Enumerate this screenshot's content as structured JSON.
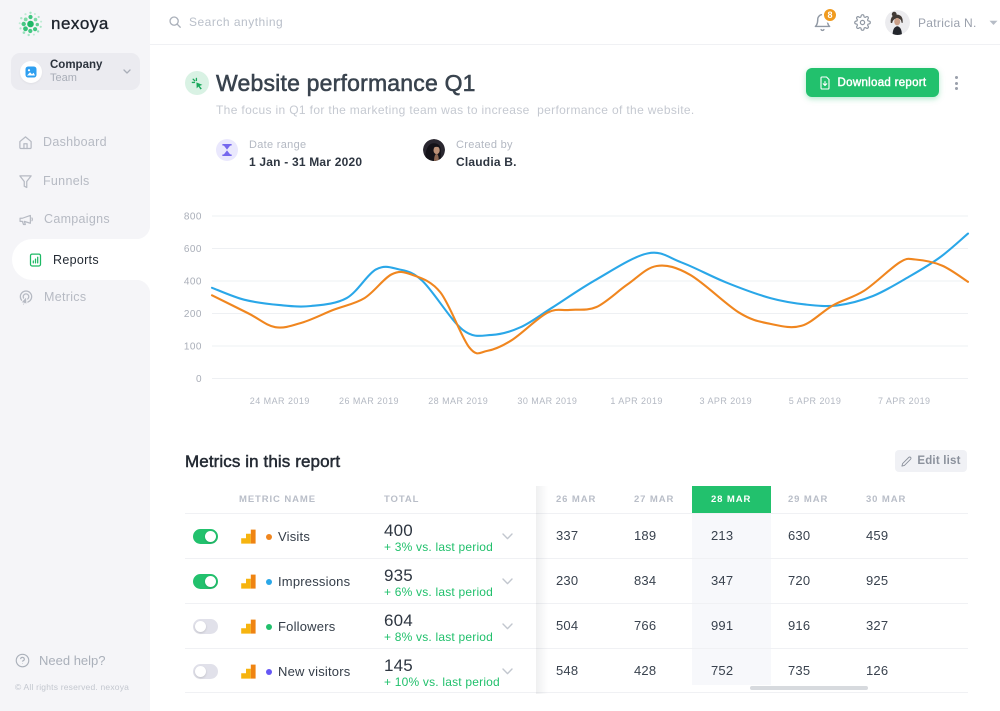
{
  "brand": {
    "name": "nexoya"
  },
  "sidebar": {
    "team_switcher": {
      "title": "Company",
      "subtitle": "Team"
    },
    "items": [
      {
        "label": "Dashboard",
        "icon": "home-icon",
        "active": false
      },
      {
        "label": "Funnels",
        "icon": "funnel-icon",
        "active": false
      },
      {
        "label": "Campaigns",
        "icon": "megaphone-icon",
        "active": false
      },
      {
        "label": "Reports",
        "icon": "report-icon",
        "active": true
      },
      {
        "label": "Metrics",
        "icon": "metrics-icon",
        "active": false
      }
    ],
    "help_label": "Need help?",
    "copyright": "© All rights reserved. nexoya"
  },
  "topbar": {
    "search_placeholder": "Search anything",
    "notifications_count": "8",
    "user_name": "Patricia N."
  },
  "report": {
    "title": "Website performance Q1",
    "description": "The focus in Q1 for the marketing team was to increase  performance of the website.",
    "download_label": "Download report",
    "date_range_label": "Date range",
    "date_range_value": "1 Jan - 31 Mar 2020",
    "created_by_label": "Created by",
    "created_by_value": "Claudia B."
  },
  "chart_data": {
    "type": "line",
    "title": "",
    "xlabel": "",
    "ylabel": "",
    "grid": true,
    "legend": "none",
    "y_ticks": [
      0,
      100,
      200,
      400,
      600,
      800
    ],
    "y_axis_note": "tick labels equally spaced (non-linear scale)",
    "x_ticks": [
      {
        "label": "24 MAR 2019",
        "day": 0
      },
      {
        "label": "26 MAR 2019",
        "day": 2
      },
      {
        "label": "28 MAR 2019",
        "day": 4
      },
      {
        "label": "30 MAR 2019",
        "day": 6
      },
      {
        "label": "1 APR 2019",
        "day": 8
      },
      {
        "label": "3 APR 2019",
        "day": 10
      },
      {
        "label": "5 APR 2019",
        "day": 12
      },
      {
        "label": "7 APR 2019",
        "day": 14
      }
    ],
    "x_domain": [
      -1.52,
      15.43
    ],
    "series": [
      {
        "name": "blue",
        "color": "#2aa7e8",
        "points": [
          [
            -1.52,
            358
          ],
          [
            -0.8,
            285
          ],
          [
            0.0,
            252
          ],
          [
            0.7,
            246
          ],
          [
            1.5,
            295
          ],
          [
            2.15,
            470
          ],
          [
            2.65,
            473
          ],
          [
            3.2,
            400
          ],
          [
            4.1,
            150
          ],
          [
            4.75,
            134
          ],
          [
            5.4,
            158
          ],
          [
            6.1,
            235
          ],
          [
            7.1,
            410
          ],
          [
            8.25,
            570
          ],
          [
            9.0,
            515
          ],
          [
            10.0,
            392
          ],
          [
            11.0,
            295
          ],
          [
            11.8,
            255
          ],
          [
            12.5,
            250
          ],
          [
            13.3,
            308
          ],
          [
            14.1,
            425
          ],
          [
            14.8,
            545
          ],
          [
            15.43,
            692
          ]
        ]
      },
      {
        "name": "orange",
        "color": "#f0861f",
        "points": [
          [
            -1.52,
            312
          ],
          [
            -0.7,
            200
          ],
          [
            -0.1,
            158
          ],
          [
            0.5,
            172
          ],
          [
            1.2,
            222
          ],
          [
            1.9,
            295
          ],
          [
            2.5,
            440
          ],
          [
            2.95,
            440
          ],
          [
            3.6,
            330
          ],
          [
            4.25,
            95
          ],
          [
            4.65,
            85
          ],
          [
            5.2,
            118
          ],
          [
            6.0,
            205
          ],
          [
            6.5,
            222
          ],
          [
            7.1,
            240
          ],
          [
            7.8,
            380
          ],
          [
            8.45,
            492
          ],
          [
            9.2,
            438
          ],
          [
            10.3,
            205
          ],
          [
            11.0,
            168
          ],
          [
            11.7,
            162
          ],
          [
            12.4,
            250
          ],
          [
            13.1,
            340
          ],
          [
            13.9,
            515
          ],
          [
            14.25,
            532
          ],
          [
            14.85,
            495
          ],
          [
            15.43,
            395
          ]
        ]
      }
    ]
  },
  "metrics_section": {
    "title": "Metrics in this report",
    "edit_label": "Edit list",
    "table": {
      "col_metric": "METRIC NAME",
      "col_total": "TOTAL",
      "date_cols": [
        "26 MAR",
        "27 MAR",
        "28 MAR",
        "29 MAR",
        "30 MAR"
      ],
      "highlighted_col": "28 MAR",
      "rows": [
        {
          "name": "Visits",
          "enabled": true,
          "dot_color": "#f0861f",
          "total": "400",
          "change": "+ 3% vs. last period",
          "values": [
            "337",
            "189",
            "213",
            "630",
            "459"
          ]
        },
        {
          "name": "Impressions",
          "enabled": true,
          "dot_color": "#2aa7e8",
          "total": "935",
          "change": "+ 6% vs. last period",
          "values": [
            "230",
            "834",
            "347",
            "720",
            "925"
          ]
        },
        {
          "name": "Followers",
          "enabled": false,
          "dot_color": "#21c06c",
          "total": "604",
          "change": "+ 8% vs. last period",
          "values": [
            "504",
            "766",
            "991",
            "916",
            "327"
          ]
        },
        {
          "name": "New visitors",
          "enabled": false,
          "dot_color": "#6557f5",
          "total": "145",
          "change": "+ 10% vs. last period",
          "values": [
            "548",
            "428",
            "752",
            "735",
            "126"
          ]
        }
      ]
    }
  }
}
